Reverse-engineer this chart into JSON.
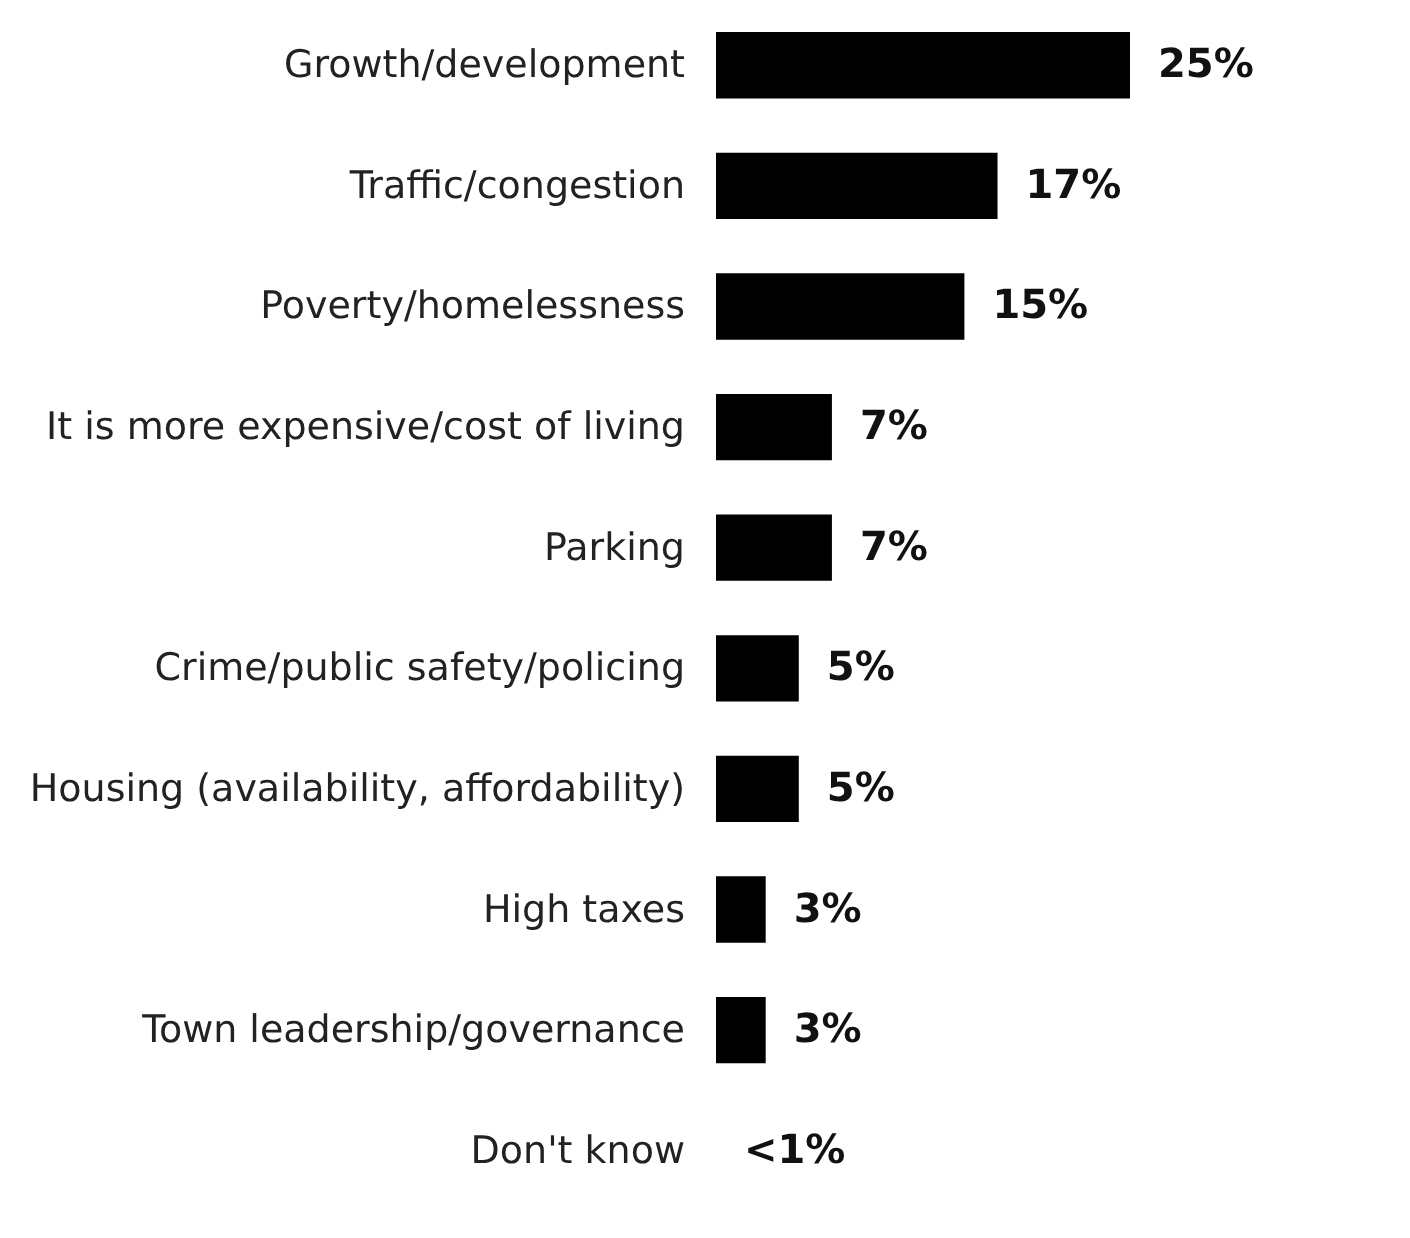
{
  "chart_data": {
    "type": "bar",
    "orientation": "horizontal",
    "categories": [
      "Growth/development",
      "Traffic/congestion",
      "Poverty/homelessness",
      "It is more expensive/cost of living",
      "Parking",
      "Crime/public safety/policing",
      "Housing (availability, affordability)",
      "High taxes",
      "Town leadership/governance",
      "Don't know"
    ],
    "values": [
      25,
      17,
      15,
      7,
      7,
      5,
      5,
      3,
      3,
      0
    ],
    "value_labels": [
      "25%",
      "17%",
      "15%",
      "7%",
      "7%",
      "5%",
      "5%",
      "3%",
      "3%",
      "<1%"
    ],
    "color": "#000000"
  }
}
